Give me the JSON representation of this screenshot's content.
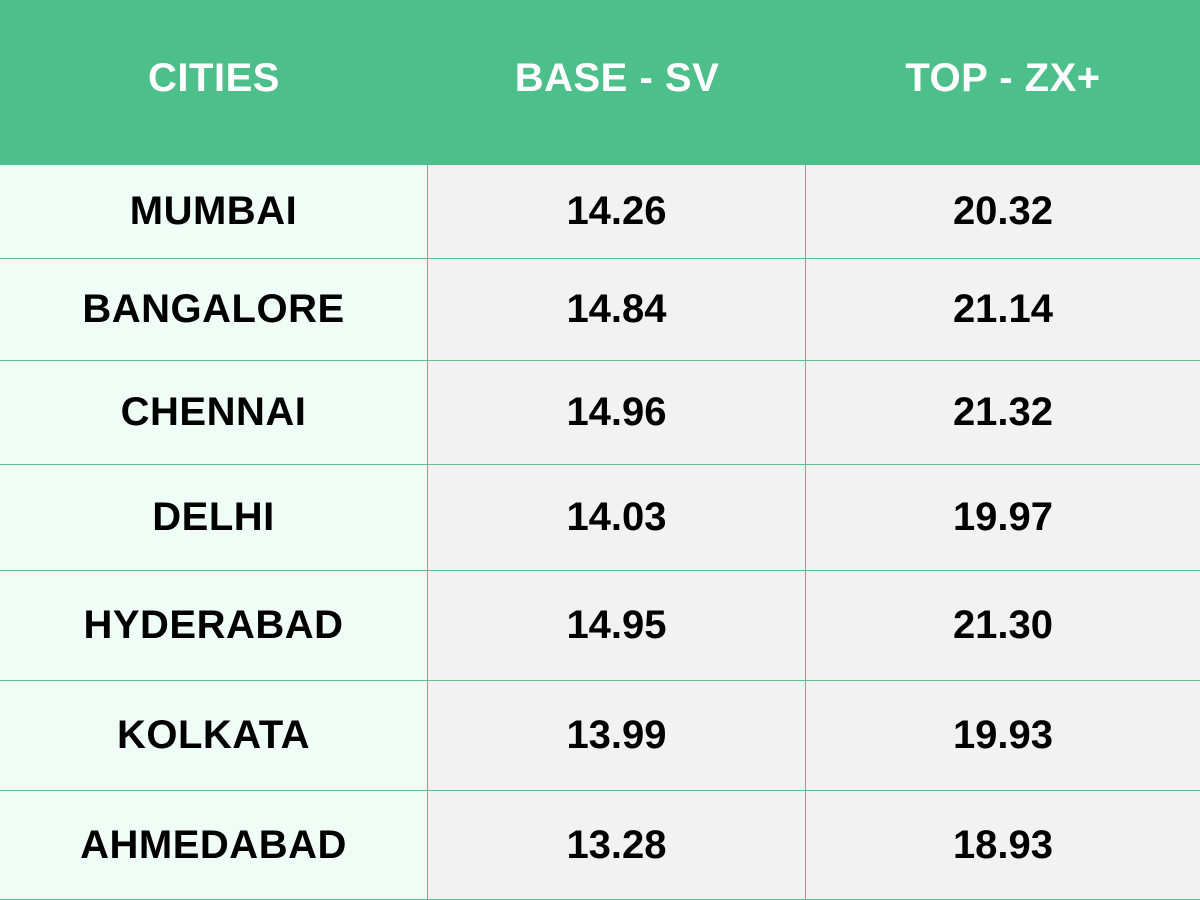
{
  "table": {
    "headers": [
      "CITIES",
      "BASE - SV",
      "TOP - ZX+"
    ],
    "rows": [
      {
        "city": "MUMBAI",
        "base": "14.26",
        "top": "20.32"
      },
      {
        "city": "BANGALORE",
        "base": "14.84",
        "top": "21.14"
      },
      {
        "city": "CHENNAI",
        "base": "14.96",
        "top": "21.32"
      },
      {
        "city": "DELHI",
        "base": "14.03",
        "top": "19.97"
      },
      {
        "city": "HYDERABAD",
        "base": "14.95",
        "top": "21.30"
      },
      {
        "city": "KOLKATA",
        "base": "13.99",
        "top": "19.93"
      },
      {
        "city": "AHMEDABAD",
        "base": "13.28",
        "top": "18.93"
      }
    ]
  },
  "colors": {
    "header_bg": "#4dbf8a",
    "city_col_bg": "#effdf6",
    "value_col_bg": "#f2f2f2",
    "grid_line": "#5bbf90"
  }
}
